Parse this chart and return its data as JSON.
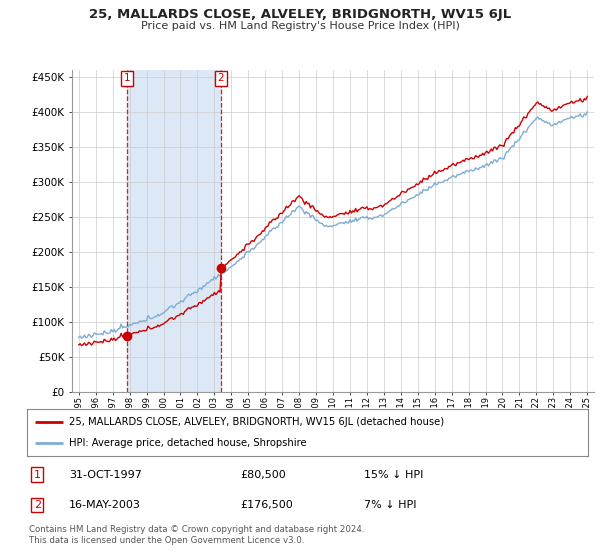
{
  "title": "25, MALLARDS CLOSE, ALVELEY, BRIDGNORTH, WV15 6JL",
  "subtitle": "Price paid vs. HM Land Registry's House Price Index (HPI)",
  "legend_house": "25, MALLARDS CLOSE, ALVELEY, BRIDGNORTH, WV15 6JL (detached house)",
  "legend_hpi": "HPI: Average price, detached house, Shropshire",
  "transaction1_date": "31-OCT-1997",
  "transaction1_price": "£80,500",
  "transaction1_hpi": "15% ↓ HPI",
  "transaction2_date": "16-MAY-2003",
  "transaction2_price": "£176,500",
  "transaction2_hpi": "7% ↓ HPI",
  "footnote1": "Contains HM Land Registry data © Crown copyright and database right 2024.",
  "footnote2": "This data is licensed under the Open Government Licence v3.0.",
  "house_color": "#cc0000",
  "hpi_color": "#7dadd4",
  "span_color": "#dce8f5",
  "background_color": "#ffffff",
  "grid_color": "#cccccc",
  "transaction1_x": 1997.83,
  "transaction1_y": 80500,
  "transaction2_x": 2003.37,
  "transaction2_y": 176500,
  "ylim": [
    0,
    460000
  ],
  "xlim": [
    1994.6,
    2025.4
  ]
}
